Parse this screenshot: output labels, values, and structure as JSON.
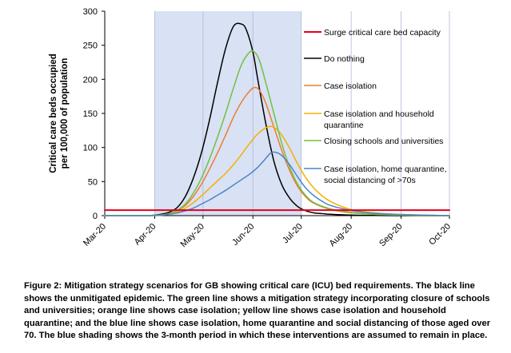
{
  "chart_data": {
    "type": "line",
    "title": "",
    "ylabel": [
      "Critical care beds occupied",
      "per 100,000 of population"
    ],
    "xlabel": "",
    "ylim": [
      0,
      300
    ],
    "yticks": [
      0,
      50,
      100,
      150,
      200,
      250,
      300
    ],
    "x_tick_labels": [
      "Mar-20",
      "Apr-20",
      "May-20",
      "Jun-20",
      "Jul-20",
      "Aug-20",
      "Sep-20",
      "Oct-20"
    ],
    "x_unit": "days since 1 Mar 2020",
    "x_tick_positions": [
      0,
      31,
      61,
      92,
      122,
      153,
      184,
      214
    ],
    "shaded_period": {
      "start": 31,
      "end": 122,
      "label": "3-month intervention period"
    },
    "series": [
      {
        "name": "Surge critical care bed capacity",
        "color": "#e0001b",
        "x": [
          0,
          214
        ],
        "y": [
          8,
          8
        ]
      },
      {
        "name": "Do nothing",
        "color": "#000000",
        "x": [
          0,
          25,
          35,
          40,
          45,
          50,
          55,
          60,
          65,
          70,
          75,
          80,
          85,
          88,
          92,
          95,
          100,
          105,
          110,
          115,
          120,
          125,
          130,
          135,
          140,
          150,
          160,
          180,
          214
        ],
        "y": [
          0,
          0,
          2,
          5,
          12,
          28,
          55,
          92,
          140,
          195,
          245,
          278,
          281,
          272,
          240,
          200,
          135,
          80,
          45,
          25,
          13,
          7,
          4,
          3,
          2,
          1,
          0.5,
          0,
          0
        ]
      },
      {
        "name": "Case isolation",
        "color": "#ed7d31",
        "x": [
          0,
          25,
          35,
          40,
          45,
          50,
          55,
          60,
          65,
          70,
          75,
          80,
          85,
          90,
          93,
          96,
          100,
          105,
          110,
          115,
          120,
          125,
          130,
          140,
          150,
          160,
          180,
          214
        ],
        "y": [
          0,
          0,
          1,
          3,
          7,
          15,
          28,
          46,
          68,
          92,
          118,
          145,
          167,
          183,
          188,
          184,
          165,
          130,
          95,
          65,
          42,
          27,
          18,
          9,
          5,
          3,
          1,
          0
        ]
      },
      {
        "name": "Case isolation and household quarantine",
        "color": "#f4b000",
        "x": [
          0,
          30,
          40,
          45,
          50,
          55,
          60,
          65,
          70,
          75,
          80,
          85,
          90,
          95,
          100,
          103,
          106,
          110,
          115,
          120,
          125,
          130,
          135,
          140,
          150,
          160,
          180,
          214
        ],
        "y": [
          0,
          0,
          2,
          5,
          11,
          19,
          29,
          40,
          51,
          62,
          75,
          90,
          106,
          120,
          129,
          131,
          128,
          118,
          98,
          75,
          55,
          40,
          29,
          21,
          11,
          6,
          2,
          0
        ]
      },
      {
        "name": "Closing schools and universities",
        "color": "#70c141",
        "x": [
          0,
          25,
          35,
          40,
          45,
          50,
          55,
          60,
          65,
          70,
          75,
          80,
          85,
          90,
          93,
          96,
          100,
          105,
          110,
          115,
          120,
          125,
          130,
          140,
          150,
          160,
          180,
          214
        ],
        "y": [
          0,
          0,
          1,
          3,
          8,
          17,
          33,
          55,
          83,
          115,
          150,
          188,
          222,
          240,
          240,
          228,
          195,
          150,
          105,
          70,
          45,
          29,
          19,
          10,
          6,
          3,
          1,
          0
        ]
      },
      {
        "name": "Case isolation, home quarantine, social distancing of >70s",
        "color": "#4a86c8",
        "x": [
          0,
          30,
          40,
          45,
          50,
          55,
          60,
          65,
          70,
          75,
          80,
          85,
          90,
          95,
          100,
          103,
          106,
          110,
          115,
          120,
          125,
          130,
          135,
          140,
          150,
          160,
          180,
          214
        ],
        "y": [
          0,
          0,
          2,
          4,
          7,
          11,
          17,
          23,
          30,
          37,
          45,
          53,
          61,
          71,
          84,
          92,
          93,
          88,
          74,
          56,
          40,
          29,
          21,
          15,
          9,
          5,
          2,
          0
        ]
      }
    ],
    "legend_position": "right"
  },
  "caption": "Figure 2: Mitigation strategy scenarios for GB showing critical care (ICU) bed requirements. The black line shows the unmitigated epidemic. The green line shows a mitigation strategy incorporating closure of schools and universities; orange line shows case isolation; yellow line shows case isolation and household quarantine; and the blue line shows case isolation, home quarantine and social distancing of those aged over 70. The blue shading shows the 3-month period in which these interventions are assumed to remain in place.",
  "legend_lines": [
    [
      "Surge critical care bed capacity"
    ],
    [
      "Do nothing"
    ],
    [
      "Case isolation"
    ],
    [
      "Case isolation and household",
      "quarantine"
    ],
    [
      "Closing schools and universities"
    ],
    [
      "Case isolation, home quarantine,",
      "social distancing of >70s"
    ]
  ]
}
